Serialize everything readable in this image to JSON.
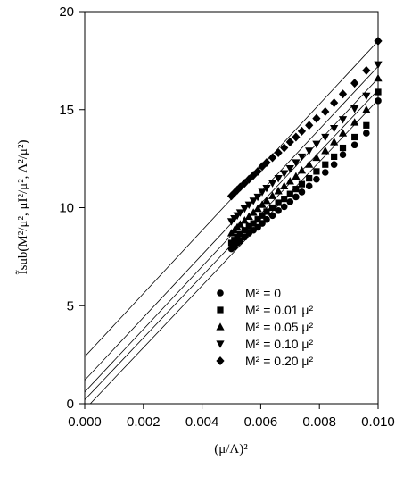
{
  "chart_data": {
    "type": "scatter",
    "title": "",
    "xlabel": "(μ/Λ)²",
    "ylabel": "Ĩsub(M²/μ², μI²/μ², Λ²/μ²)",
    "xlim": [
      0.0,
      0.01
    ],
    "ylim": [
      0,
      20
    ],
    "x_ticks": [
      "0.000",
      "0.002",
      "0.004",
      "0.006",
      "0.008",
      "0.010"
    ],
    "y_ticks": [
      "0",
      "5",
      "10",
      "15",
      "20"
    ],
    "grid": false,
    "legend_position": "bottom-right",
    "series": [
      {
        "name": "M² = 0",
        "marker": "circle",
        "x": [
          0.005,
          0.0051,
          0.0052,
          0.0053,
          0.00545,
          0.0056,
          0.00575,
          0.0059,
          0.00605,
          0.0062,
          0.0064,
          0.0066,
          0.0068,
          0.007,
          0.0072,
          0.0074,
          0.00765,
          0.0079,
          0.0082,
          0.0085,
          0.0088,
          0.0092,
          0.0096,
          0.01
        ],
        "y": [
          7.9,
          8.0,
          8.2,
          8.3,
          8.5,
          8.7,
          8.85,
          9.0,
          9.2,
          9.4,
          9.6,
          9.85,
          10.05,
          10.3,
          10.55,
          10.8,
          11.1,
          11.45,
          11.8,
          12.2,
          12.7,
          13.2,
          13.8,
          15.45
        ]
      },
      {
        "name": "M² = 0.01 μ²",
        "marker": "square",
        "x": [
          0.005,
          0.0051,
          0.0052,
          0.0053,
          0.00545,
          0.0056,
          0.00575,
          0.0059,
          0.00605,
          0.0062,
          0.0064,
          0.0066,
          0.0068,
          0.007,
          0.0072,
          0.0074,
          0.00765,
          0.0079,
          0.0082,
          0.0085,
          0.0088,
          0.0092,
          0.0096,
          0.01
        ],
        "y": [
          8.2,
          8.35,
          8.5,
          8.65,
          8.85,
          9.05,
          9.2,
          9.4,
          9.6,
          9.8,
          10.0,
          10.25,
          10.45,
          10.7,
          10.95,
          11.2,
          11.5,
          11.85,
          12.2,
          12.6,
          13.05,
          13.6,
          14.2,
          15.9
        ]
      },
      {
        "name": "M² = 0.05 μ²",
        "marker": "triangle-up",
        "x": [
          0.005,
          0.0051,
          0.0052,
          0.0053,
          0.00545,
          0.0056,
          0.00575,
          0.0059,
          0.00605,
          0.0062,
          0.0064,
          0.0066,
          0.0068,
          0.007,
          0.0072,
          0.0074,
          0.00765,
          0.0079,
          0.0082,
          0.0085,
          0.0088,
          0.0092,
          0.0096,
          0.01
        ],
        "y": [
          8.7,
          8.85,
          9.0,
          9.15,
          9.35,
          9.55,
          9.75,
          9.95,
          10.15,
          10.35,
          10.6,
          10.85,
          11.1,
          11.35,
          11.6,
          11.9,
          12.2,
          12.55,
          12.9,
          13.35,
          13.8,
          14.35,
          15.0,
          16.6
        ]
      },
      {
        "name": "M² = 0.10 μ²",
        "marker": "triangle-down",
        "x": [
          0.005,
          0.0051,
          0.0052,
          0.0053,
          0.00545,
          0.0056,
          0.00575,
          0.0059,
          0.00605,
          0.0062,
          0.0064,
          0.0066,
          0.0068,
          0.007,
          0.0072,
          0.0074,
          0.00765,
          0.0079,
          0.0082,
          0.0085,
          0.0088,
          0.0092,
          0.0096,
          0.01
        ],
        "y": [
          9.3,
          9.45,
          9.6,
          9.75,
          9.95,
          10.15,
          10.35,
          10.55,
          10.8,
          11.0,
          11.25,
          11.5,
          11.75,
          12.0,
          12.3,
          12.6,
          12.9,
          13.25,
          13.6,
          14.05,
          14.5,
          15.05,
          15.7,
          17.3
        ]
      },
      {
        "name": "M² = 0.20 μ²",
        "marker": "diamond",
        "x": [
          0.005,
          0.0051,
          0.0052,
          0.0053,
          0.00545,
          0.0056,
          0.00575,
          0.0059,
          0.00605,
          0.0062,
          0.0064,
          0.0066,
          0.0068,
          0.007,
          0.0072,
          0.0074,
          0.00765,
          0.0079,
          0.0082,
          0.0085,
          0.0088,
          0.0092,
          0.0096,
          0.01
        ],
        "y": [
          10.6,
          10.75,
          10.9,
          11.05,
          11.25,
          11.45,
          11.65,
          11.85,
          12.1,
          12.3,
          12.55,
          12.8,
          13.05,
          13.35,
          13.6,
          13.9,
          14.2,
          14.55,
          14.9,
          15.35,
          15.8,
          16.35,
          17.0,
          18.5
        ]
      }
    ],
    "fit_lines": [
      {
        "intercept": -0.3,
        "slope": 1580
      },
      {
        "intercept": 0.2,
        "slope": 1580
      },
      {
        "intercept": 0.6,
        "slope": 1600
      },
      {
        "intercept": 1.2,
        "slope": 1600
      },
      {
        "intercept": 2.4,
        "slope": 1610
      }
    ]
  }
}
